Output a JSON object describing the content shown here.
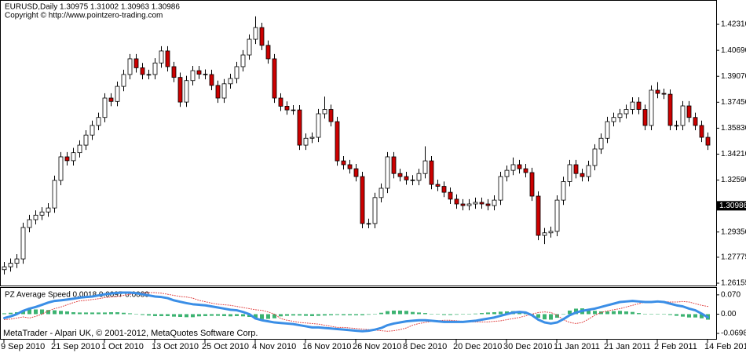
{
  "chart_data": [
    {
      "type": "candlestick",
      "title": "EURUSD,Daily  1.30975 1.31002 1.30963 1.30986",
      "subtitle": "Copyright © http://www.pointzero-trading.com",
      "categories": [
        "9 Sep 2010",
        null,
        null,
        null,
        null,
        null,
        null,
        null,
        "21 Sep 2010",
        null,
        null,
        null,
        null,
        null,
        null,
        null,
        "1 Oct 2010",
        null,
        null,
        null,
        null,
        null,
        null,
        null,
        "13 Oct 2010",
        null,
        null,
        null,
        null,
        null,
        null,
        null,
        "25 Oct 2010",
        null,
        null,
        null,
        null,
        null,
        null,
        null,
        "4 Nov 2010",
        null,
        null,
        null,
        null,
        null,
        null,
        null,
        "16 Nov 2010",
        null,
        null,
        null,
        null,
        null,
        null,
        null,
        "26 Nov 2010",
        null,
        null,
        null,
        null,
        null,
        null,
        null,
        "8 Dec 2010",
        null,
        null,
        null,
        null,
        null,
        null,
        null,
        "20 Dec 2010",
        null,
        null,
        null,
        null,
        null,
        null,
        null,
        "30 Dec 2010",
        null,
        null,
        null,
        null,
        null,
        null,
        null,
        "11 Jan 2011",
        null,
        null,
        null,
        null,
        null,
        null,
        null,
        "21 Jan 2011",
        null,
        null,
        null,
        null,
        null,
        null,
        null,
        "2 Feb 2011",
        null,
        null,
        null,
        null,
        null,
        null,
        null,
        "14 Feb 2011"
      ],
      "open": [
        1.27,
        1.2718,
        1.274,
        1.2767,
        1.2963,
        1.3012,
        1.304,
        1.306,
        1.3085,
        1.3257,
        1.3404,
        1.338,
        1.343,
        1.3477,
        1.354,
        1.36,
        1.365,
        1.3771,
        1.375,
        1.3844,
        1.3918,
        1.4016,
        1.396,
        1.3918,
        1.3918,
        1.399,
        1.4065,
        1.3967,
        1.39,
        1.3746,
        1.388,
        1.3942,
        1.392,
        1.3918,
        1.385,
        1.3771,
        1.386,
        1.3893,
        1.3967,
        1.404,
        1.4138,
        1.4211,
        1.41,
        1.4016,
        1.3771,
        1.372,
        1.3697,
        1.3697,
        1.3477,
        1.352,
        1.3526,
        1.3673,
        1.37,
        1.3624,
        1.3379,
        1.3355,
        1.333,
        1.3281,
        1.2988,
        1.2988,
        1.315,
        1.3208,
        1.3404,
        1.33,
        1.3281,
        1.326,
        1.3257,
        1.33,
        1.3379,
        1.3232,
        1.322,
        1.3183,
        1.314,
        1.311,
        1.31,
        1.311,
        1.312,
        1.311,
        1.31,
        1.3134,
        1.3281,
        1.332,
        1.3355,
        1.333,
        1.3306,
        1.3159,
        1.2914,
        1.293,
        1.2939,
        1.3134,
        1.325,
        1.3355,
        1.33,
        1.3281,
        1.335,
        1.3453,
        1.352,
        1.3624,
        1.365,
        1.3673,
        1.37,
        1.3746,
        1.37,
        1.36,
        1.382,
        1.38,
        1.3795,
        1.36,
        1.36,
        1.3722,
        1.365,
        1.36,
        1.3526
      ],
      "high": [
        1.2748,
        1.277,
        1.2797,
        1.2993,
        1.3042,
        1.307,
        1.309,
        1.3115,
        1.3287,
        1.3434,
        1.3434,
        1.346,
        1.3507,
        1.357,
        1.363,
        1.368,
        1.3801,
        1.3801,
        1.3874,
        1.3948,
        1.4046,
        1.4046,
        1.399,
        1.3948,
        1.402,
        1.4095,
        1.4095,
        1.3997,
        1.393,
        1.391,
        1.3972,
        1.3972,
        1.395,
        1.3948,
        1.388,
        1.389,
        1.3923,
        1.3997,
        1.407,
        1.4168,
        1.4281,
        1.4241,
        1.413,
        1.4046,
        1.3801,
        1.375,
        1.3727,
        1.3727,
        1.355,
        1.3556,
        1.3703,
        1.378,
        1.373,
        1.3654,
        1.3409,
        1.3385,
        1.336,
        1.3311,
        1.3018,
        1.318,
        1.3238,
        1.3434,
        1.3434,
        1.333,
        1.3311,
        1.329,
        1.333,
        1.347,
        1.3409,
        1.3262,
        1.325,
        1.3213,
        1.317,
        1.314,
        1.314,
        1.315,
        1.315,
        1.314,
        1.3164,
        1.3311,
        1.335,
        1.34,
        1.3385,
        1.336,
        1.3336,
        1.3189,
        1.296,
        1.2969,
        1.3164,
        1.328,
        1.3385,
        1.3385,
        1.333,
        1.338,
        1.3483,
        1.355,
        1.3654,
        1.368,
        1.3703,
        1.373,
        1.3776,
        1.3776,
        1.373,
        1.385,
        1.387,
        1.383,
        1.3825,
        1.363,
        1.3752,
        1.3752,
        1.368,
        1.363,
        1.3556
      ],
      "low": [
        1.267,
        1.2688,
        1.271,
        1.2737,
        1.2933,
        1.2982,
        1.301,
        1.303,
        1.3055,
        1.3227,
        1.335,
        1.335,
        1.34,
        1.3447,
        1.351,
        1.357,
        1.362,
        1.372,
        1.372,
        1.3814,
        1.3888,
        1.393,
        1.3888,
        1.3888,
        1.3888,
        1.396,
        1.3937,
        1.387,
        1.3716,
        1.3716,
        1.385,
        1.389,
        1.3888,
        1.382,
        1.3741,
        1.3741,
        1.383,
        1.3863,
        1.3937,
        1.401,
        1.4108,
        1.407,
        1.3986,
        1.3741,
        1.369,
        1.3667,
        1.3667,
        1.3447,
        1.3447,
        1.349,
        1.3496,
        1.3643,
        1.3594,
        1.3349,
        1.3325,
        1.33,
        1.3251,
        1.2958,
        1.2958,
        1.2958,
        1.312,
        1.3178,
        1.327,
        1.3251,
        1.323,
        1.3227,
        1.3227,
        1.327,
        1.3202,
        1.319,
        1.3153,
        1.311,
        1.308,
        1.307,
        1.307,
        1.308,
        1.308,
        1.307,
        1.307,
        1.3104,
        1.3251,
        1.329,
        1.33,
        1.3276,
        1.3129,
        1.2884,
        1.286,
        1.29,
        1.2909,
        1.3104,
        1.322,
        1.327,
        1.3251,
        1.3251,
        1.332,
        1.3423,
        1.349,
        1.3594,
        1.362,
        1.3643,
        1.367,
        1.367,
        1.357,
        1.357,
        1.377,
        1.3765,
        1.357,
        1.357,
        1.357,
        1.362,
        1.357,
        1.3496,
        1.3447
      ],
      "close": [
        1.2718,
        1.274,
        1.2767,
        1.2963,
        1.3012,
        1.304,
        1.306,
        1.3085,
        1.3257,
        1.3404,
        1.338,
        1.343,
        1.3477,
        1.354,
        1.36,
        1.365,
        1.3771,
        1.375,
        1.3844,
        1.3918,
        1.4016,
        1.396,
        1.3918,
        1.3918,
        1.399,
        1.4065,
        1.3967,
        1.39,
        1.3746,
        1.388,
        1.3942,
        1.392,
        1.3918,
        1.385,
        1.3771,
        1.386,
        1.3893,
        1.3967,
        1.404,
        1.4138,
        1.4211,
        1.41,
        1.4016,
        1.3771,
        1.372,
        1.3697,
        1.3697,
        1.3477,
        1.352,
        1.3526,
        1.3673,
        1.37,
        1.3624,
        1.3379,
        1.3355,
        1.333,
        1.3281,
        1.2988,
        1.2988,
        1.315,
        1.3208,
        1.3404,
        1.33,
        1.3281,
        1.326,
        1.3257,
        1.33,
        1.3379,
        1.3232,
        1.322,
        1.3183,
        1.314,
        1.311,
        1.31,
        1.311,
        1.312,
        1.311,
        1.31,
        1.3134,
        1.3281,
        1.332,
        1.3355,
        1.333,
        1.3306,
        1.3159,
        1.2914,
        1.293,
        1.2939,
        1.3134,
        1.325,
        1.3355,
        1.33,
        1.3281,
        1.335,
        1.3453,
        1.352,
        1.3624,
        1.365,
        1.3673,
        1.37,
        1.3746,
        1.37,
        1.36,
        1.382,
        1.38,
        1.3795,
        1.36,
        1.36,
        1.3722,
        1.365,
        1.36,
        1.3526,
        1.3477
      ],
      "up_color": "#ffffff",
      "down_color": "#cc0000",
      "ylim": [
        1.2596,
        1.4383
      ],
      "yticks": [
        {
          "value": 1.4231,
          "label": "1.42310"
        },
        {
          "value": 1.4069,
          "label": "1.40690"
        },
        {
          "value": 1.3907,
          "label": "1.39070"
        },
        {
          "value": 1.3745,
          "label": "1.37450"
        },
        {
          "value": 1.3583,
          "label": "1.35830"
        },
        {
          "value": 1.3421,
          "label": "1.34210"
        },
        {
          "value": 1.3259,
          "label": "1.32590"
        },
        {
          "value": 1.2935,
          "label": "1.29350"
        },
        1.27775,
        1.26155
      ],
      "current_price": 1.30986
    },
    {
      "type": "indicator",
      "title": "PZ Average Speed 0.0018 0.0097 0.0080",
      "series": [
        {
          "style": "histogram",
          "color": "#3cb371",
          "values": [
            0.003,
            0.005,
            0.007,
            0.011,
            0.017,
            0.017,
            0.017,
            0.015,
            0.014,
            0.012,
            0.01,
            0.007,
            0.006,
            0.006,
            0.006,
            0.006,
            0.006,
            0.007,
            0.007,
            0.005,
            0.003,
            0.001,
            -0.003,
            -0.005,
            -0.007,
            -0.007,
            -0.007,
            -0.009,
            -0.01,
            -0.011,
            -0.011,
            -0.008,
            -0.007,
            -0.006,
            -0.006,
            -0.007,
            -0.008,
            -0.007,
            -0.008,
            -0.01,
            -0.016,
            -0.018,
            -0.017,
            -0.015,
            -0.008,
            -0.006,
            -0.005,
            -0.005,
            -0.006,
            -0.007,
            -0.006,
            -0.005,
            -0.004,
            -0.003,
            -0.004,
            -0.004,
            -0.004,
            -0.004,
            -0.002,
            0.001,
            0.005,
            0.011,
            0.013,
            0.013,
            0.012,
            0.008,
            0.006,
            0.004,
            0.001,
            -0.001,
            -0.003,
            -0.003,
            -0.002,
            -0.001,
            0.001,
            0.002,
            0.004,
            0.006,
            0.007,
            0.009,
            0.01,
            0.011,
            0.01,
            0.006,
            -0.002,
            -0.013,
            -0.019,
            -0.02,
            -0.013,
            0.001,
            0.013,
            0.02,
            0.021,
            0.017,
            0.012,
            0.01,
            0.01,
            0.011,
            0.012,
            0.01,
            0.008,
            0.004,
            0,
            -0.001,
            -0.001,
            -0.001,
            -0.003,
            -0.006,
            -0.009,
            -0.012,
            -0.012,
            -0.015,
            -0.02
          ]
        },
        {
          "style": "dotted",
          "color": "#e04040",
          "values": [
            -0.02,
            -0.018,
            -0.014,
            -0.01,
            -0.014,
            -0.008,
            0.0,
            0.012,
            0.02,
            0.026,
            0.034,
            0.042,
            0.048,
            0.05,
            0.053,
            0.056,
            0.06,
            0.062,
            0.064,
            0.068,
            0.072,
            0.075,
            0.077,
            0.078,
            0.078,
            0.076,
            0.072,
            0.068,
            0.064,
            0.062,
            0.058,
            0.05,
            0.045,
            0.04,
            0.036,
            0.034,
            0.032,
            0.028,
            0.024,
            0.02,
            0.016,
            0.014,
            0.008,
            0.0,
            -0.016,
            -0.022,
            -0.026,
            -0.03,
            -0.032,
            -0.034,
            -0.036,
            -0.04,
            -0.044,
            -0.048,
            -0.048,
            -0.05,
            -0.052,
            -0.054,
            -0.056,
            -0.058,
            -0.06,
            -0.062,
            -0.06,
            -0.056,
            -0.05,
            -0.04,
            -0.034,
            -0.03,
            -0.026,
            -0.024,
            -0.022,
            -0.022,
            -0.024,
            -0.026,
            -0.028,
            -0.028,
            -0.028,
            -0.028,
            -0.026,
            -0.024,
            -0.02,
            -0.016,
            -0.012,
            -0.006,
            0.0,
            0.006,
            0.008,
            0.006,
            -0.004,
            -0.02,
            -0.03,
            -0.034,
            -0.03,
            -0.018,
            -0.004,
            0.006,
            0.012,
            0.016,
            0.02,
            0.026,
            0.032,
            0.038,
            0.044,
            0.046,
            0.048,
            0.046,
            0.044,
            0.044,
            0.046,
            0.044,
            0.038,
            0.032,
            0.028
          ]
        },
        {
          "style": "line",
          "color": "#3a8ee6",
          "values": [
            -0.014,
            -0.008,
            0.0,
            0.012,
            0.02,
            0.026,
            0.034,
            0.042,
            0.048,
            0.05,
            0.053,
            0.056,
            0.06,
            0.062,
            0.064,
            0.068,
            0.072,
            0.075,
            0.077,
            0.078,
            0.078,
            0.076,
            0.072,
            0.068,
            0.064,
            0.062,
            0.058,
            0.05,
            0.045,
            0.04,
            0.036,
            0.034,
            0.032,
            0.028,
            0.024,
            0.02,
            0.016,
            0.014,
            0.008,
            0.0,
            -0.016,
            -0.022,
            -0.026,
            -0.03,
            -0.032,
            -0.034,
            -0.036,
            -0.04,
            -0.044,
            -0.048,
            -0.048,
            -0.05,
            -0.052,
            -0.054,
            -0.056,
            -0.058,
            -0.06,
            -0.062,
            -0.06,
            -0.056,
            -0.05,
            -0.04,
            -0.034,
            -0.03,
            -0.026,
            -0.024,
            -0.022,
            -0.022,
            -0.024,
            -0.026,
            -0.028,
            -0.028,
            -0.028,
            -0.028,
            -0.026,
            -0.024,
            -0.02,
            -0.016,
            -0.012,
            -0.006,
            0.0,
            0.006,
            0.008,
            0.006,
            -0.004,
            -0.02,
            -0.03,
            -0.034,
            -0.03,
            -0.018,
            -0.004,
            0.006,
            0.012,
            0.016,
            0.02,
            0.026,
            0.032,
            0.038,
            0.044,
            0.046,
            0.048,
            0.046,
            0.044,
            0.044,
            0.046,
            0.044,
            0.038,
            0.032,
            0.028,
            0.02,
            0.014,
            0.002,
            -0.012
          ]
        }
      ],
      "y2lim": [
        -0.0896,
        0.0952
      ],
      "y2ticks": [
        {
          "value": 0.07,
          "label": "0.070"
        },
        {
          "value": 0,
          "label": "0.00"
        },
        -0.0698
      ]
    }
  ],
  "footer": "MetaTrader - Alpari UK, © 2001-2012, MetaQuotes Software Corp."
}
